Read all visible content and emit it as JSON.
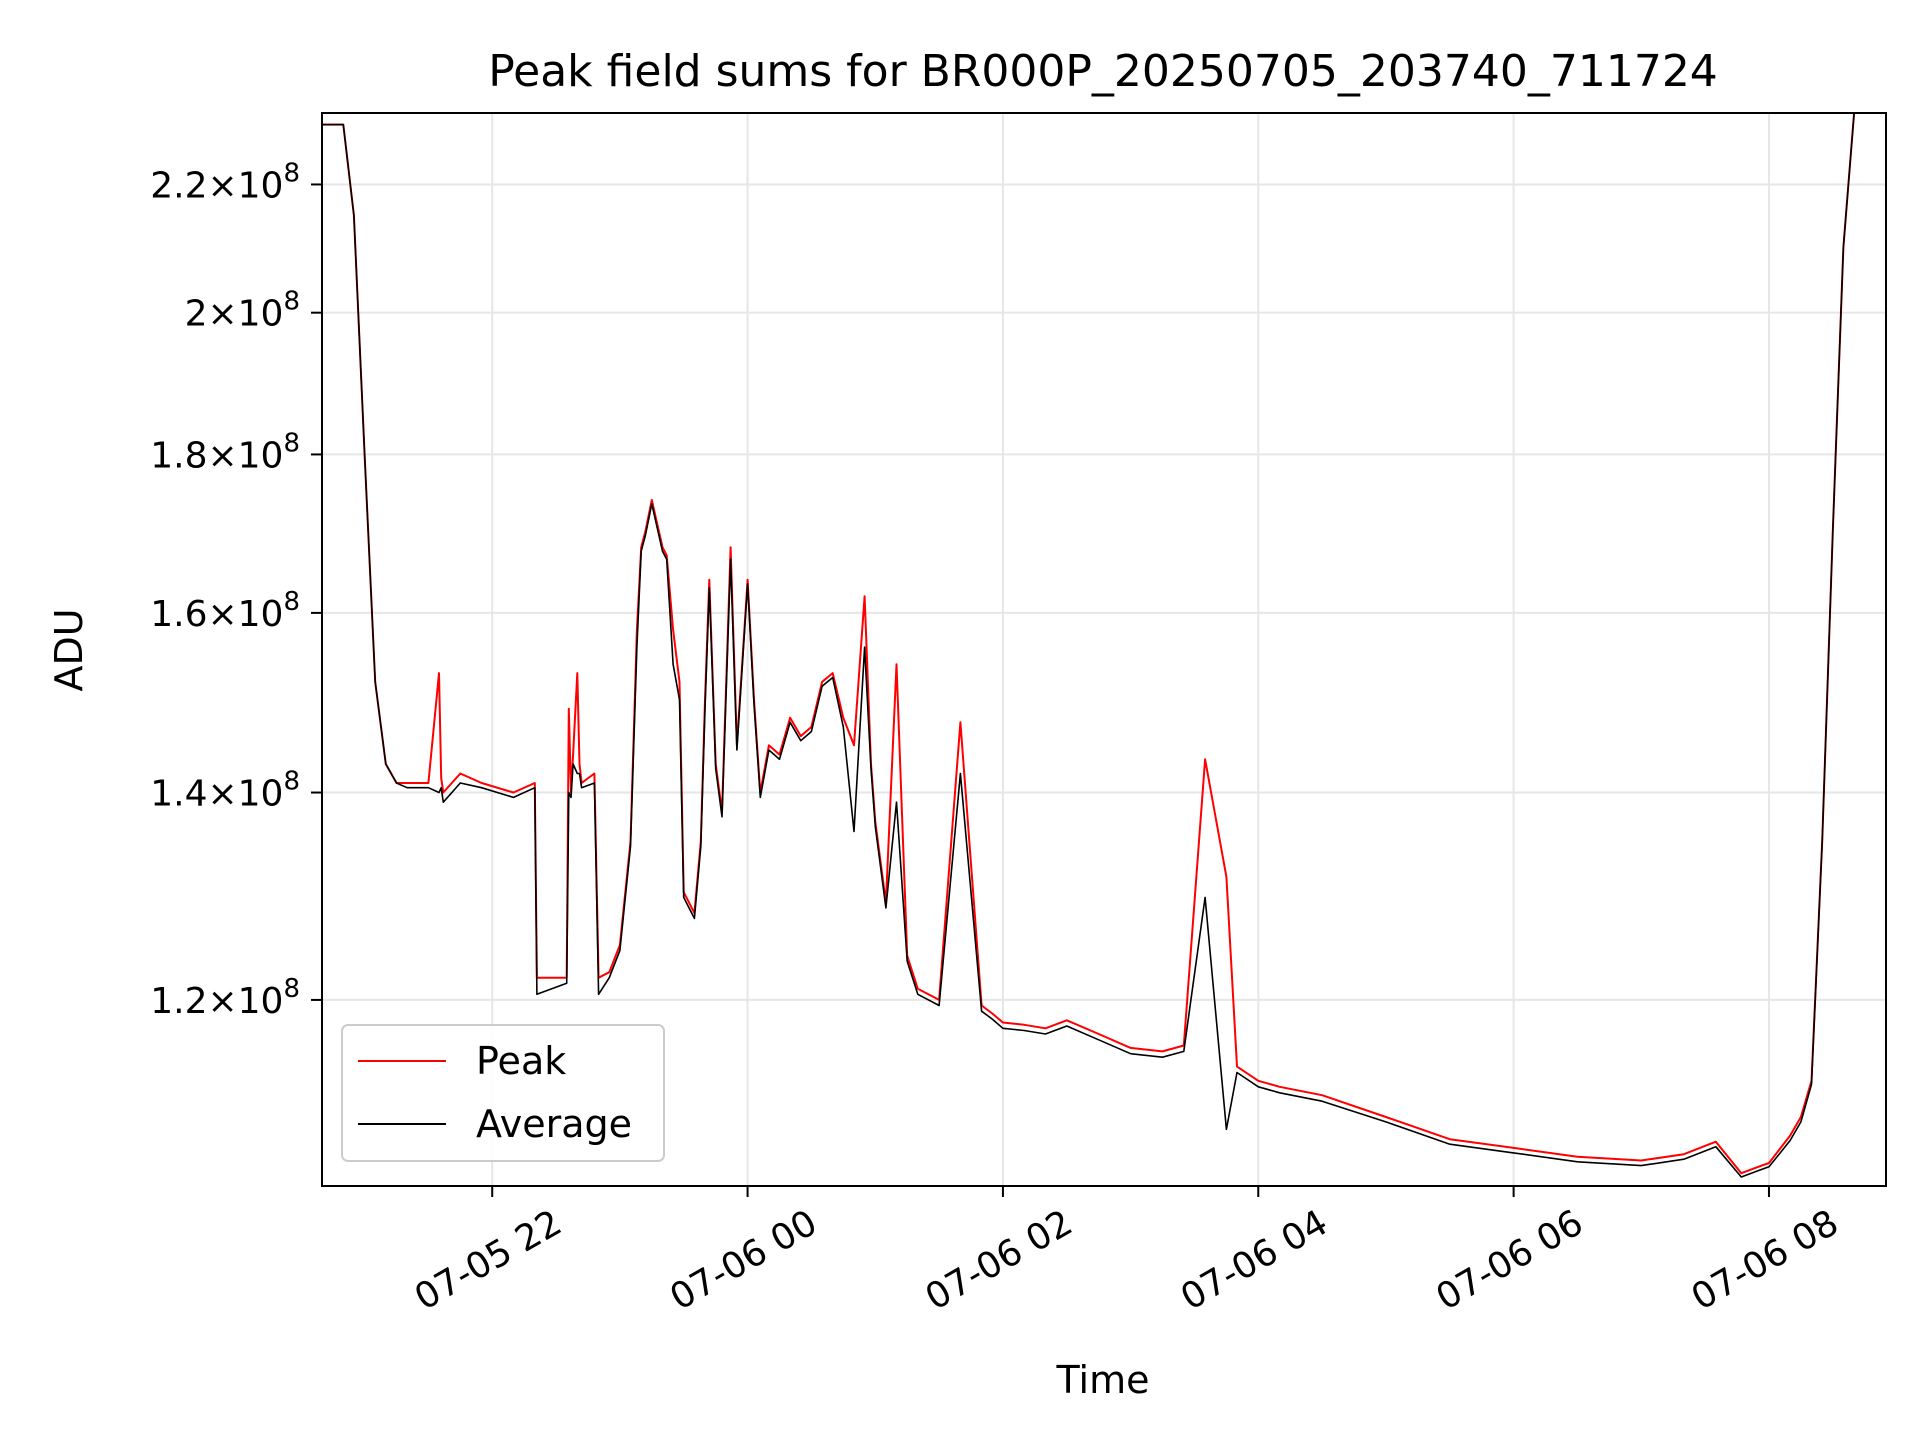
{
  "chart_data": {
    "type": "line",
    "title": "Peak field sums for BR000P_20250705_203740_711724",
    "xlabel": "Time",
    "ylabel": "ADU",
    "y_scale": "log",
    "ylim": [
      104500000,
      232000000
    ],
    "xlim": [
      "2025-07-05 20:40",
      "2025-07-06 08:55"
    ],
    "grid": true,
    "legend_position": "lower-left",
    "x_ticks": [
      {
        "value": "2025-07-05 22:00",
        "label": "07-05 22"
      },
      {
        "value": "2025-07-06 00:00",
        "label": "07-06 00"
      },
      {
        "value": "2025-07-06 02:00",
        "label": "07-06 02"
      },
      {
        "value": "2025-07-06 04:00",
        "label": "07-06 04"
      },
      {
        "value": "2025-07-06 06:00",
        "label": "07-06 06"
      },
      {
        "value": "2025-07-06 08:00",
        "label": "07-06 08"
      }
    ],
    "y_ticks": [
      {
        "value": 120000000,
        "mantissa": "1.2",
        "base": "10",
        "exp": "8"
      },
      {
        "value": 140000000,
        "mantissa": "1.4",
        "base": "10",
        "exp": "8"
      },
      {
        "value": 160000000,
        "mantissa": "1.6",
        "base": "10",
        "exp": "8"
      },
      {
        "value": 180000000,
        "mantissa": "1.8",
        "base": "10",
        "exp": "8"
      },
      {
        "value": 200000000,
        "mantissa": "2",
        "base": "10",
        "exp": "8"
      },
      {
        "value": 220000000,
        "mantissa": "2.2",
        "base": "10",
        "exp": "8"
      }
    ],
    "series": [
      {
        "name": "Peak",
        "color": "#ff0000",
        "x": [
          "2025-07-05 20:40",
          "2025-07-05 20:50",
          "2025-07-05 20:55",
          "2025-07-05 21:00",
          "2025-07-05 21:05",
          "2025-07-05 21:10",
          "2025-07-05 21:15",
          "2025-07-05 21:20",
          "2025-07-05 21:30",
          "2025-07-05 21:35",
          "2025-07-05 21:36",
          "2025-07-05 21:37",
          "2025-07-05 21:45",
          "2025-07-05 21:55",
          "2025-07-05 22:10",
          "2025-07-05 22:20",
          "2025-07-05 22:21",
          "2025-07-05 22:35",
          "2025-07-05 22:36",
          "2025-07-05 22:37",
          "2025-07-05 22:38",
          "2025-07-05 22:40",
          "2025-07-05 22:41",
          "2025-07-05 22:42",
          "2025-07-05 22:48",
          "2025-07-05 22:50",
          "2025-07-05 22:55",
          "2025-07-05 22:56",
          "2025-07-05 23:00",
          "2025-07-05 23:05",
          "2025-07-05 23:08",
          "2025-07-05 23:10",
          "2025-07-05 23:12",
          "2025-07-05 23:15",
          "2025-07-05 23:20",
          "2025-07-05 23:22",
          "2025-07-05 23:25",
          "2025-07-05 23:28",
          "2025-07-05 23:30",
          "2025-07-05 23:35",
          "2025-07-05 23:38",
          "2025-07-05 23:40",
          "2025-07-05 23:42",
          "2025-07-05 23:45",
          "2025-07-05 23:48",
          "2025-07-05 23:52",
          "2025-07-05 23:55",
          "2025-07-06 00:00",
          "2025-07-06 00:03",
          "2025-07-06 00:06",
          "2025-07-06 00:10",
          "2025-07-06 00:15",
          "2025-07-06 00:20",
          "2025-07-06 00:25",
          "2025-07-06 00:30",
          "2025-07-06 00:35",
          "2025-07-06 00:40",
          "2025-07-06 00:45",
          "2025-07-06 00:50",
          "2025-07-06 00:55",
          "2025-07-06 00:58",
          "2025-07-06 01:00",
          "2025-07-06 01:05",
          "2025-07-06 01:10",
          "2025-07-06 01:15",
          "2025-07-06 01:20",
          "2025-07-06 01:30",
          "2025-07-06 01:40",
          "2025-07-06 01:50",
          "2025-07-06 01:55",
          "2025-07-06 02:00",
          "2025-07-06 02:10",
          "2025-07-06 02:20",
          "2025-07-06 02:30",
          "2025-07-06 02:45",
          "2025-07-06 03:00",
          "2025-07-06 03:15",
          "2025-07-06 03:25",
          "2025-07-06 03:35",
          "2025-07-06 03:45",
          "2025-07-06 03:50",
          "2025-07-06 04:00",
          "2025-07-06 04:10",
          "2025-07-06 04:30",
          "2025-07-06 05:00",
          "2025-07-06 05:30",
          "2025-07-06 06:00",
          "2025-07-06 06:30",
          "2025-07-06 07:00",
          "2025-07-06 07:20",
          "2025-07-06 07:35",
          "2025-07-06 07:47",
          "2025-07-06 07:55",
          "2025-07-06 08:00",
          "2025-07-06 08:10",
          "2025-07-06 08:15",
          "2025-07-06 08:20",
          "2025-07-06 08:25",
          "2025-07-06 08:30",
          "2025-07-06 08:35",
          "2025-07-06 08:40",
          "2025-07-06 08:55"
        ],
        "values": [
          230000000,
          230000000,
          215000000,
          180000000,
          152000000,
          143000000,
          141000000,
          141000000,
          141000000,
          153000000,
          141500000,
          140000000,
          142000000,
          141000000,
          140000000,
          141000000,
          122000000,
          122000000,
          149000000,
          140000000,
          144000000,
          153000000,
          143000000,
          141000000,
          142000000,
          122000000,
          122500000,
          123000000,
          125000000,
          135000000,
          158000000,
          168000000,
          170000000,
          174000000,
          168000000,
          167000000,
          158000000,
          152000000,
          130000000,
          128000000,
          135000000,
          150000000,
          164000000,
          143000000,
          138000000,
          168000000,
          145000000,
          164000000,
          150000000,
          140000000,
          145000000,
          144000000,
          148000000,
          146000000,
          147000000,
          152000000,
          153000000,
          148000000,
          145000000,
          162000000,
          143000000,
          137000000,
          129000000,
          154000000,
          124000000,
          121000000,
          120000000,
          147500000,
          119500000,
          118800000,
          118000000,
          117800000,
          117500000,
          118200000,
          117000000,
          115800000,
          115500000,
          116000000,
          143500000,
          131500000,
          114200000,
          113000000,
          112500000,
          111800000,
          110000000,
          108200000,
          107500000,
          106800000,
          106500000,
          107000000,
          108000000,
          105500000,
          106000000,
          106300000,
          108500000,
          110000000,
          113000000,
          135000000,
          170000000,
          210000000,
          232000000,
          232000000
        ]
      },
      {
        "name": "Average",
        "color": "#000000",
        "x": [
          "2025-07-05 20:40",
          "2025-07-05 20:50",
          "2025-07-05 20:55",
          "2025-07-05 21:00",
          "2025-07-05 21:05",
          "2025-07-05 21:10",
          "2025-07-05 21:15",
          "2025-07-05 21:20",
          "2025-07-05 21:30",
          "2025-07-05 21:35",
          "2025-07-05 21:36",
          "2025-07-05 21:37",
          "2025-07-05 21:45",
          "2025-07-05 21:55",
          "2025-07-05 22:10",
          "2025-07-05 22:20",
          "2025-07-05 22:21",
          "2025-07-05 22:35",
          "2025-07-05 22:36",
          "2025-07-05 22:37",
          "2025-07-05 22:38",
          "2025-07-05 22:40",
          "2025-07-05 22:41",
          "2025-07-05 22:42",
          "2025-07-05 22:48",
          "2025-07-05 22:50",
          "2025-07-05 22:55",
          "2025-07-05 22:56",
          "2025-07-05 23:00",
          "2025-07-05 23:05",
          "2025-07-05 23:08",
          "2025-07-05 23:10",
          "2025-07-05 23:12",
          "2025-07-05 23:15",
          "2025-07-05 23:20",
          "2025-07-05 23:22",
          "2025-07-05 23:25",
          "2025-07-05 23:28",
          "2025-07-05 23:30",
          "2025-07-05 23:35",
          "2025-07-05 23:38",
          "2025-07-05 23:40",
          "2025-07-05 23:42",
          "2025-07-05 23:45",
          "2025-07-05 23:48",
          "2025-07-05 23:52",
          "2025-07-05 23:55",
          "2025-07-06 00:00",
          "2025-07-06 00:03",
          "2025-07-06 00:06",
          "2025-07-06 00:10",
          "2025-07-06 00:15",
          "2025-07-06 00:20",
          "2025-07-06 00:25",
          "2025-07-06 00:30",
          "2025-07-06 00:35",
          "2025-07-06 00:40",
          "2025-07-06 00:45",
          "2025-07-06 00:50",
          "2025-07-06 00:55",
          "2025-07-06 00:58",
          "2025-07-06 01:00",
          "2025-07-06 01:05",
          "2025-07-06 01:10",
          "2025-07-06 01:15",
          "2025-07-06 01:20",
          "2025-07-06 01:30",
          "2025-07-06 01:40",
          "2025-07-06 01:50",
          "2025-07-06 01:55",
          "2025-07-06 02:00",
          "2025-07-06 02:10",
          "2025-07-06 02:20",
          "2025-07-06 02:30",
          "2025-07-06 02:45",
          "2025-07-06 03:00",
          "2025-07-06 03:15",
          "2025-07-06 03:25",
          "2025-07-06 03:35",
          "2025-07-06 03:45",
          "2025-07-06 03:50",
          "2025-07-06 04:00",
          "2025-07-06 04:10",
          "2025-07-06 04:30",
          "2025-07-06 05:00",
          "2025-07-06 05:30",
          "2025-07-06 06:00",
          "2025-07-06 06:30",
          "2025-07-06 07:00",
          "2025-07-06 07:20",
          "2025-07-06 07:35",
          "2025-07-06 07:47",
          "2025-07-06 07:55",
          "2025-07-06 08:00",
          "2025-07-06 08:10",
          "2025-07-06 08:15",
          "2025-07-06 08:20",
          "2025-07-06 08:25",
          "2025-07-06 08:30",
          "2025-07-06 08:35",
          "2025-07-06 08:40",
          "2025-07-06 08:55"
        ],
        "values": [
          230000000,
          230000000,
          215000000,
          180000000,
          152000000,
          143000000,
          141000000,
          140500000,
          140500000,
          140000000,
          140500000,
          139000000,
          141000000,
          140500000,
          139500000,
          140500000,
          120500000,
          121500000,
          140000000,
          139500000,
          143000000,
          142000000,
          142000000,
          140500000,
          141000000,
          120500000,
          122000000,
          122500000,
          124500000,
          134500000,
          156000000,
          167500000,
          169500000,
          173500000,
          167500000,
          166500000,
          154000000,
          150000000,
          129500000,
          127500000,
          134500000,
          149000000,
          163000000,
          142500000,
          137500000,
          166500000,
          144500000,
          163500000,
          149500000,
          139500000,
          144500000,
          143500000,
          147500000,
          145500000,
          146500000,
          151500000,
          152500000,
          147000000,
          136000000,
          156000000,
          142500000,
          136500000,
          128500000,
          139000000,
          123500000,
          120500000,
          119500000,
          142000000,
          119000000,
          118300000,
          117500000,
          117300000,
          117000000,
          117700000,
          116500000,
          115300000,
          115000000,
          115500000,
          129500000,
          109000000,
          113700000,
          112500000,
          112000000,
          111300000,
          109600000,
          107800000,
          107100000,
          106400000,
          106100000,
          106600000,
          107600000,
          105200000,
          105700000,
          106000000,
          108100000,
          109600000,
          112700000,
          135000000,
          170000000,
          210000000,
          232000000,
          232000000
        ]
      }
    ]
  }
}
